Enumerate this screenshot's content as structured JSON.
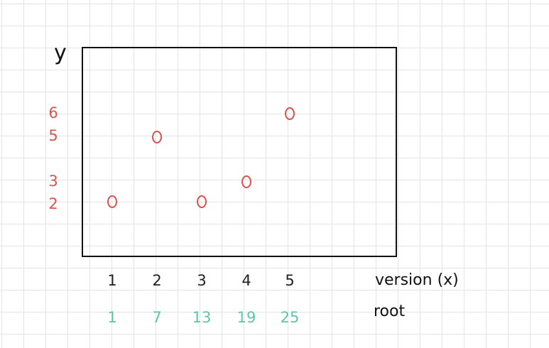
{
  "chart_data": {
    "type": "scatter",
    "y_axis_label": "y",
    "x_axis_label": "version (x)",
    "second_row_label": "root",
    "y_tick_labels": [
      "6",
      "5",
      "3",
      "2"
    ],
    "x_tick_labels": [
      "1",
      "2",
      "3",
      "4",
      "5"
    ],
    "root_tick_labels": [
      "1",
      "7",
      "13",
      "19",
      "25"
    ],
    "points": [
      {
        "x": 1,
        "y": 2
      },
      {
        "x": 2,
        "y": 5
      },
      {
        "x": 3,
        "y": 2
      },
      {
        "x": 4,
        "y": 3
      },
      {
        "x": 5,
        "y": 6
      }
    ],
    "colors": {
      "frame": "#111111",
      "points": "#d9534f",
      "y_ticks": "#d9534f",
      "x_ticks": "#222222",
      "root_ticks": "#5fc6a4",
      "labels": "#111111"
    }
  }
}
